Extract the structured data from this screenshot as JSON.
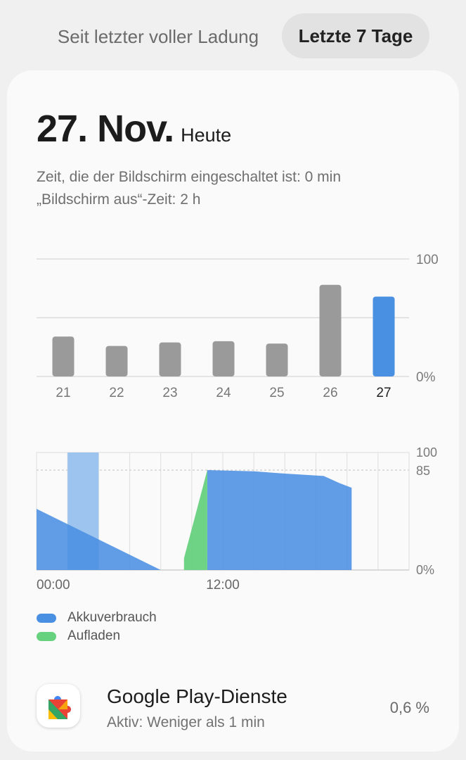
{
  "tabs": {
    "since_full_charge": "Seit letzter voller Ladung",
    "last_7_days": "Letzte 7 Tage"
  },
  "header": {
    "date": "27. Nov.",
    "today": "Heute",
    "screen_on": "Zeit, die der Bildschirm eingeschaltet ist: 0 min",
    "screen_off": "„Bildschirm aus“-Zeit: 2 h"
  },
  "chart_data": [
    {
      "type": "bar",
      "categories": [
        "21",
        "22",
        "23",
        "24",
        "25",
        "26",
        "27"
      ],
      "values": [
        34,
        26,
        29,
        30,
        28,
        78,
        68
      ],
      "highlight_index": 6,
      "ylim": [
        0,
        100
      ],
      "y_tick_labels": [
        "0%",
        "100"
      ],
      "grid": true,
      "colors": {
        "default": "#9a9a9a",
        "highlight": "#4a90e2"
      }
    },
    {
      "type": "area",
      "x_tick_labels": [
        "00:00",
        "12:00"
      ],
      "ylim": [
        0,
        100
      ],
      "y_tick_labels": [
        "0%",
        "85",
        "100"
      ],
      "reference_line": 85,
      "grid": true,
      "series": [
        {
          "name": "Akkuverbrauch",
          "color": "#4a90e2",
          "segments": [
            [
              [
                0,
                52
              ],
              [
                8,
                0
              ]
            ],
            [
              [
                11,
                85
              ],
              [
                14,
                84
              ],
              [
                16,
                82
              ],
              [
                18.5,
                80
              ],
              [
                19.5,
                74
              ],
              [
                20.3,
                70
              ],
              [
                20.3,
                0
              ]
            ]
          ]
        },
        {
          "name": "Aufladen",
          "color": "#66d17e",
          "segments": [
            [
              [
                9.5,
                10
              ],
              [
                11,
                85
              ]
            ]
          ]
        }
      ],
      "highlight_band": {
        "from": 2,
        "to": 4,
        "color": "#9dc4ef"
      }
    }
  ],
  "legend": {
    "usage": "Akkuverbrauch",
    "charging": "Aufladen",
    "usage_color": "#4a90e2",
    "charging_color": "#66d17e"
  },
  "app": {
    "name": "Google Play-Dienste",
    "subtitle": "Aktiv: Weniger als 1 min",
    "percent": "0,6 %",
    "icon": "google-play-services-icon"
  }
}
